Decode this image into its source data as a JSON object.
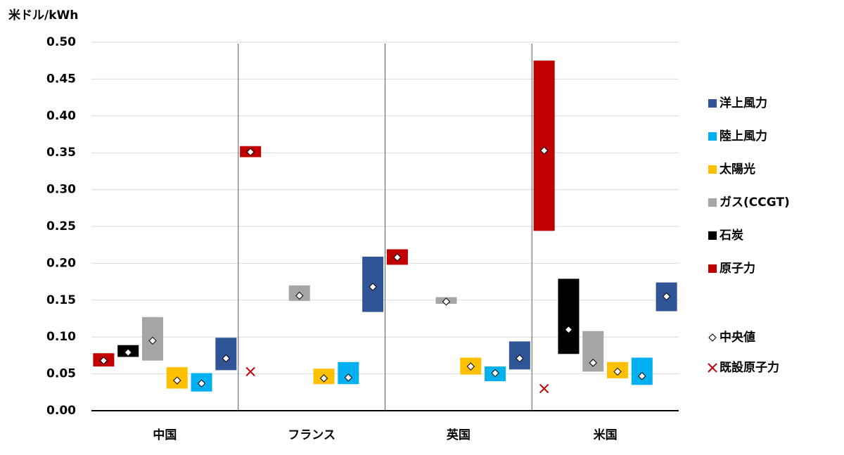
{
  "chart_data": {
    "type": "floating-bar",
    "y_label": "米ドル/kWh",
    "categories": [
      "中国",
      "フランス",
      "英国",
      "米国"
    ],
    "ylim": [
      0,
      0.5
    ],
    "yticks": [
      {
        "value": 0,
        "label": "0.00"
      },
      {
        "value": 0.05,
        "label": "0.05"
      },
      {
        "value": 0.1,
        "label": "0.10"
      },
      {
        "value": 0.15,
        "label": "0.15"
      },
      {
        "value": 0.2,
        "label": "0.20"
      },
      {
        "value": 0.25,
        "label": "0.25"
      },
      {
        "value": 0.3,
        "label": "0.30"
      },
      {
        "value": 0.35,
        "label": "0.35"
      },
      {
        "value": 0.4,
        "label": "0.40"
      },
      {
        "value": 0.45,
        "label": "0.45"
      },
      {
        "value": 0.5,
        "label": "0.50"
      }
    ],
    "grid": true,
    "series": [
      {
        "name": "洋上風力",
        "color": "#2f5597",
        "low": [
          0.055,
          0.134,
          0.056,
          0.135
        ],
        "high": [
          0.099,
          0.209,
          0.094,
          0.174
        ],
        "median": [
          0.071,
          0.168,
          0.071,
          0.155
        ]
      },
      {
        "name": "陸上風力",
        "color": "#00b0f0",
        "low": [
          0.026,
          0.036,
          0.04,
          0.035
        ],
        "high": [
          0.051,
          0.066,
          0.06,
          0.072
        ],
        "median": [
          0.037,
          0.045,
          0.051,
          0.047
        ]
      },
      {
        "name": "太陽光",
        "color": "#ffc000",
        "low": [
          0.03,
          0.036,
          0.049,
          0.044
        ],
        "high": [
          0.059,
          0.057,
          0.072,
          0.066
        ],
        "median": [
          0.041,
          0.044,
          0.06,
          0.053
        ]
      },
      {
        "name": "ガス(CCGT)",
        "color": "#a5a5a5",
        "low": [
          0.068,
          0.149,
          0.145,
          0.053
        ],
        "high": [
          0.127,
          0.17,
          0.154,
          0.108
        ],
        "median": [
          0.095,
          0.156,
          0.148,
          0.065
        ]
      },
      {
        "name": "石炭",
        "color": "#000000",
        "low": [
          0.073,
          null,
          null,
          0.077
        ],
        "high": [
          0.089,
          null,
          null,
          0.179
        ],
        "median": [
          0.079,
          null,
          null,
          0.11
        ]
      },
      {
        "name": "原子力",
        "color": "#c00000",
        "low": [
          0.06,
          0.344,
          0.198,
          0.244
        ],
        "high": [
          0.078,
          0.359,
          0.219,
          0.475
        ],
        "median": [
          0.068,
          0.351,
          0.208,
          0.353
        ]
      }
    ],
    "median_label": "中央値",
    "existing": {
      "name": "既設原子力",
      "color": "#c00000",
      "values": [
        null,
        0.053,
        null,
        0.03
      ]
    }
  }
}
